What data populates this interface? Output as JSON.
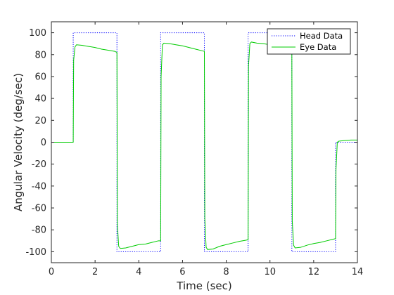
{
  "chart_data": {
    "type": "line",
    "xlabel": "Time (sec)",
    "ylabel": "Angular  Velocity  (deg/sec)",
    "xlim": [
      0,
      14
    ],
    "ylim": [
      -110,
      110
    ],
    "xticks": [
      0,
      2,
      4,
      6,
      8,
      10,
      12,
      14
    ],
    "yticks": [
      -100,
      -80,
      -60,
      -40,
      -20,
      0,
      20,
      40,
      60,
      80,
      100
    ],
    "grid": false,
    "legend_position": "top-right",
    "series": [
      {
        "name": "Head Data",
        "color": "#0000ff",
        "style": "dotted",
        "x": [
          0,
          1,
          1,
          3,
          3,
          5,
          5,
          7,
          7,
          9,
          9,
          11,
          11,
          13,
          13,
          14
        ],
        "y": [
          0,
          0,
          100,
          100,
          -100,
          -100,
          100,
          100,
          -100,
          -100,
          100,
          100,
          -100,
          -100,
          0,
          0
        ]
      },
      {
        "name": "Eye Data",
        "color": "#00cc00",
        "style": "solid",
        "x": [
          0,
          1.0,
          1.02,
          1.08,
          1.15,
          1.4,
          1.7,
          2.0,
          2.3,
          2.6,
          2.9,
          3.0,
          3.02,
          3.08,
          3.15,
          3.4,
          3.7,
          4.0,
          4.3,
          4.6,
          4.9,
          5.0,
          5.02,
          5.08,
          5.15,
          5.4,
          5.7,
          6.0,
          6.3,
          6.6,
          6.9,
          7.0,
          7.02,
          7.08,
          7.15,
          7.4,
          7.7,
          8.0,
          8.3,
          8.6,
          8.9,
          9.0,
          9.02,
          9.08,
          9.15,
          9.4,
          9.7,
          10.0,
          10.3,
          10.6,
          10.9,
          11.0,
          11.02,
          11.08,
          11.15,
          11.4,
          11.7,
          12.0,
          12.3,
          12.6,
          12.9,
          13.0,
          13.02,
          13.08,
          13.15,
          13.4,
          13.7,
          14.0
        ],
        "y": [
          0,
          0,
          75,
          87,
          89,
          88.5,
          87.5,
          86.5,
          85,
          84,
          83,
          82,
          -75,
          -95,
          -97,
          -96.5,
          -95,
          -93.5,
          -93,
          -91.5,
          -90,
          -90,
          60,
          89,
          90.5,
          90,
          89,
          88,
          86.5,
          85,
          83.5,
          83,
          -70,
          -96,
          -98,
          -97.5,
          -95,
          -93.5,
          -92,
          -90.5,
          -89.5,
          -89,
          70,
          90,
          91.5,
          90.5,
          90,
          89,
          88,
          87,
          86,
          85,
          -72,
          -94,
          -96.5,
          -96,
          -94,
          -92.5,
          -91.5,
          -90,
          -88.5,
          -88,
          -25,
          0,
          1,
          1.5,
          2,
          2
        ]
      }
    ]
  }
}
